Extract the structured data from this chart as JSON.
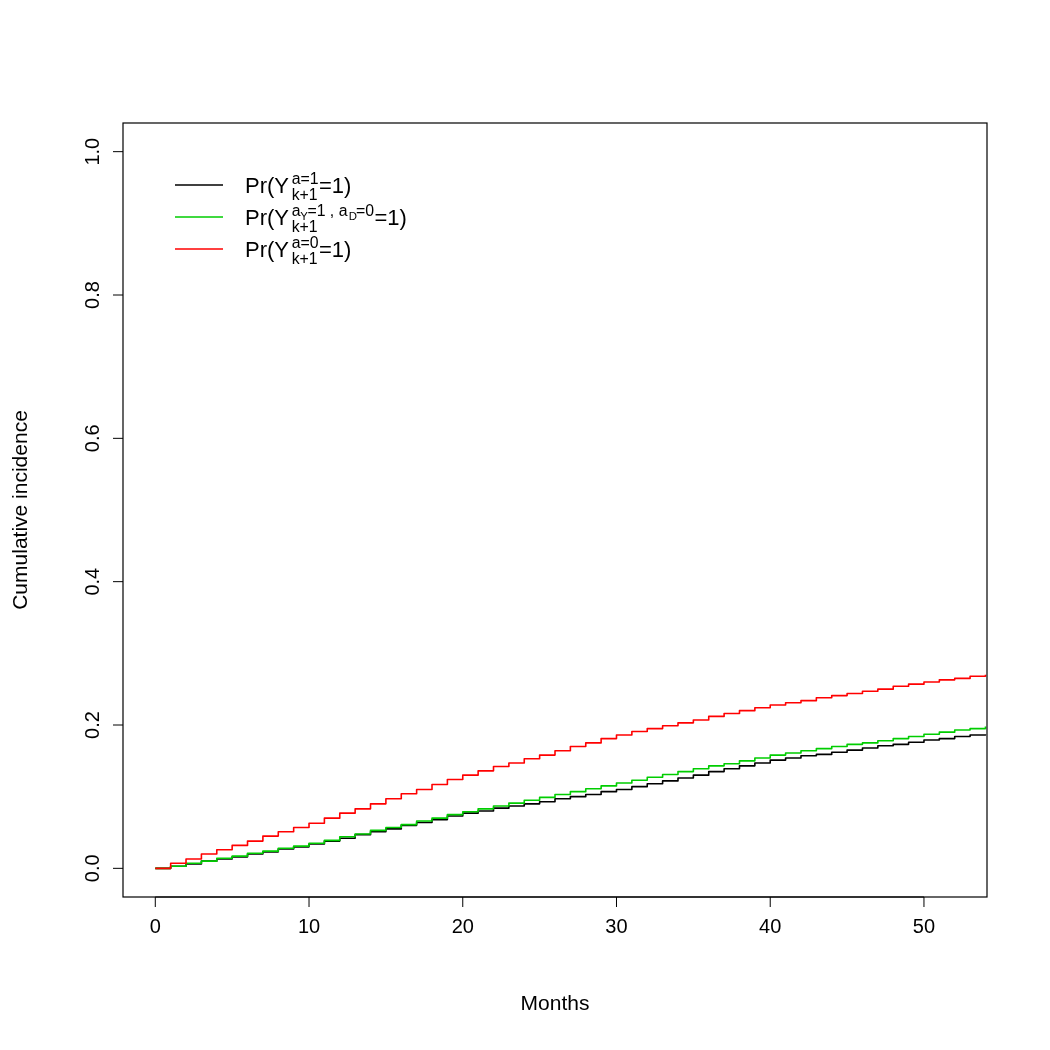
{
  "chart_data": {
    "type": "step",
    "xlabel": "Months",
    "ylabel": "Cumulative incidence",
    "x": [
      0,
      1,
      2,
      3,
      4,
      5,
      6,
      7,
      8,
      9,
      10,
      11,
      12,
      13,
      14,
      15,
      16,
      17,
      18,
      19,
      20,
      21,
      22,
      23,
      24,
      25,
      26,
      27,
      28,
      29,
      30,
      31,
      32,
      33,
      34,
      35,
      36,
      37,
      38,
      39,
      40,
      41,
      42,
      43,
      44,
      45,
      46,
      47,
      48,
      49,
      50,
      51,
      52,
      53,
      54
    ],
    "series": [
      {
        "name": "Pr(Y$^{a=1}$$_{k+1}$=1)",
        "color": "#000000",
        "values": [
          0,
          0.003,
          0.006,
          0.01,
          0.013,
          0.016,
          0.02,
          0.023,
          0.027,
          0.03,
          0.034,
          0.038,
          0.042,
          0.047,
          0.051,
          0.055,
          0.06,
          0.064,
          0.068,
          0.073,
          0.077,
          0.08,
          0.084,
          0.087,
          0.09,
          0.093,
          0.097,
          0.1,
          0.103,
          0.107,
          0.11,
          0.114,
          0.118,
          0.122,
          0.126,
          0.13,
          0.135,
          0.139,
          0.143,
          0.147,
          0.151,
          0.154,
          0.157,
          0.159,
          0.162,
          0.165,
          0.168,
          0.171,
          0.173,
          0.176,
          0.179,
          0.181,
          0.184,
          0.186,
          0.187
        ]
      },
      {
        "name": "Pr(Y$^{a}$$_{Y}$$^{=1 , a}$$_{D}$$^{=0}$$_{k+1}$=1)",
        "color": "#00cd00",
        "values": [
          0,
          0.003,
          0.007,
          0.01,
          0.014,
          0.017,
          0.021,
          0.024,
          0.028,
          0.031,
          0.035,
          0.039,
          0.044,
          0.048,
          0.053,
          0.057,
          0.061,
          0.066,
          0.07,
          0.075,
          0.079,
          0.083,
          0.087,
          0.091,
          0.095,
          0.099,
          0.103,
          0.107,
          0.111,
          0.115,
          0.119,
          0.123,
          0.127,
          0.131,
          0.135,
          0.139,
          0.143,
          0.146,
          0.15,
          0.154,
          0.158,
          0.161,
          0.164,
          0.167,
          0.17,
          0.173,
          0.175,
          0.178,
          0.181,
          0.184,
          0.187,
          0.19,
          0.193,
          0.195,
          0.198
        ]
      },
      {
        "name": "Pr(Y$^{a=0}$$_{k+1}$=1)",
        "color": "#ff0000",
        "values": [
          0,
          0.007,
          0.013,
          0.02,
          0.026,
          0.032,
          0.038,
          0.045,
          0.051,
          0.057,
          0.063,
          0.07,
          0.077,
          0.083,
          0.09,
          0.097,
          0.104,
          0.11,
          0.117,
          0.124,
          0.13,
          0.136,
          0.142,
          0.147,
          0.153,
          0.158,
          0.164,
          0.17,
          0.175,
          0.181,
          0.186,
          0.191,
          0.195,
          0.199,
          0.203,
          0.207,
          0.212,
          0.216,
          0.22,
          0.224,
          0.228,
          0.231,
          0.234,
          0.238,
          0.241,
          0.244,
          0.247,
          0.25,
          0.254,
          0.257,
          0.26,
          0.263,
          0.265,
          0.268,
          0.27
        ]
      }
    ],
    "xlim": [
      -2.1,
      54.1
    ],
    "ylim": [
      -0.04,
      1.04
    ],
    "xticks": [
      0,
      10,
      20,
      30,
      40,
      50
    ],
    "yticks": [
      {
        "value": 0,
        "label": "0.0"
      },
      {
        "value": 0.2,
        "label": "0.2"
      },
      {
        "value": 0.4,
        "label": "0.4"
      },
      {
        "value": 0.6,
        "label": "0.6"
      },
      {
        "value": 0.8,
        "label": "0.8"
      },
      {
        "value": 1,
        "label": "1.0"
      }
    ],
    "grid": false,
    "legend": "top left",
    "line_style": "solid"
  }
}
